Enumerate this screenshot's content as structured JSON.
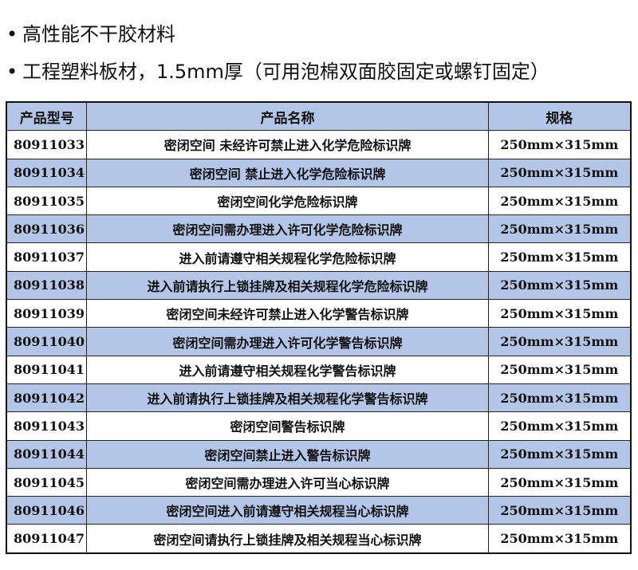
{
  "bullets": [
    {
      "icon": "bullet-dot",
      "text": "高性能不干胶材料"
    },
    {
      "icon": "bullet-dot",
      "text": "工程塑料板材，1.5mm厚（可用泡棉双面胶固定或螺钉固定）"
    }
  ],
  "table": {
    "header_color": "#b4c6e7",
    "columns": [
      "产品型号",
      "产品名称",
      "规格"
    ],
    "rows": [
      [
        "80911033",
        "密闭空间 未经许可禁止进入化学危险标识牌",
        "250mm×315mm"
      ],
      [
        "80911034",
        "密闭空间 禁止进入化学危险标识牌",
        "250mm×315mm"
      ],
      [
        "80911035",
        "密闭空间化学危险标识牌",
        "250mm×315mm"
      ],
      [
        "80911036",
        "密闭空间需办理进入许可化学危险标识牌",
        "250mm×315mm"
      ],
      [
        "80911037",
        "进入前请遵守相关规程化学危险标识牌",
        "250mm×315mm"
      ],
      [
        "80911038",
        "进入前请执行上锁挂牌及相关规程化学危险标识牌",
        "250mm×315mm"
      ],
      [
        "80911039",
        "密闭空间未经许可禁止进入化学警告标识牌",
        "250mm×315mm"
      ],
      [
        "80911040",
        "密闭空间需办理进入许可化学警告标识牌",
        "250mm×315mm"
      ],
      [
        "80911041",
        "进入前请遵守相关规程化学警告标识牌",
        "250mm×315mm"
      ],
      [
        "80911042",
        "进入前请执行上锁挂牌及相关规程化学警告标识牌",
        "250mm×315mm"
      ],
      [
        "80911043",
        "密闭空间警告标识牌",
        "250mm×315mm"
      ],
      [
        "80911044",
        "密闭空间禁止进入警告标识牌",
        "250mm×315mm"
      ],
      [
        "80911045",
        "密闭空间需办理进入许可当心标识牌",
        "250mm×315mm"
      ],
      [
        "80911046",
        "密闭空间进入前请遵守相关规程当心标识牌",
        "250mm×315mm"
      ],
      [
        "80911047",
        "密闭空间请执行上锁挂牌及相关规程当心标识牌",
        "250mm×315mm"
      ]
    ]
  }
}
